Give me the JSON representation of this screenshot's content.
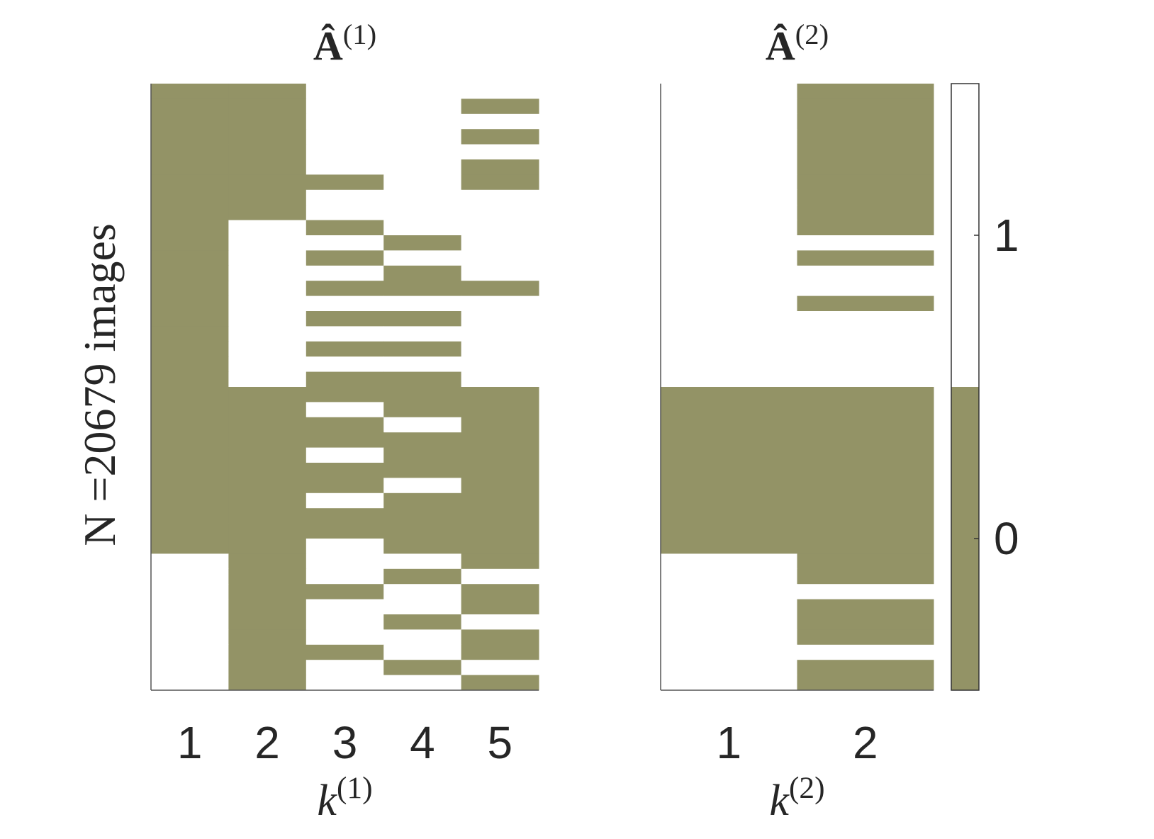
{
  "chart_data": [
    {
      "type": "heatmap",
      "title_base": "Â",
      "title_sup": "(1)",
      "xlabel_base": "k",
      "xlabel_sup": "(1)",
      "ylabel": "N =20679 images",
      "xticks": [
        1,
        2,
        3,
        4,
        5
      ],
      "colormap": [
        "#939366",
        "#ffffff"
      ],
      "z": [
        [
          0,
          0,
          1,
          1,
          1
        ],
        [
          0,
          0,
          1,
          1,
          0
        ],
        [
          0,
          0,
          1,
          1,
          1
        ],
        [
          0,
          0,
          1,
          1,
          0
        ],
        [
          0,
          0,
          1,
          1,
          1
        ],
        [
          0,
          0,
          1,
          1,
          0
        ],
        [
          0,
          0,
          0,
          1,
          0
        ],
        [
          0,
          0,
          1,
          1,
          1
        ],
        [
          0,
          0,
          1,
          1,
          1
        ],
        [
          0,
          1,
          0,
          1,
          1
        ],
        [
          0,
          1,
          1,
          0,
          1
        ],
        [
          0,
          1,
          0,
          1,
          1
        ],
        [
          0,
          1,
          1,
          0,
          1
        ],
        [
          0,
          1,
          0,
          0,
          0
        ],
        [
          0,
          1,
          1,
          1,
          1
        ],
        [
          0,
          1,
          0,
          0,
          1
        ],
        [
          0,
          1,
          1,
          1,
          1
        ],
        [
          0,
          1,
          0,
          0,
          1
        ],
        [
          0,
          1,
          1,
          1,
          1
        ],
        [
          0,
          1,
          0,
          0,
          1
        ],
        [
          0,
          0,
          0,
          0,
          0
        ],
        [
          0,
          0,
          1,
          0,
          0
        ],
        [
          0,
          0,
          0,
          1,
          0
        ],
        [
          0,
          0,
          0,
          0,
          0
        ],
        [
          0,
          0,
          1,
          0,
          0
        ],
        [
          0,
          0,
          0,
          0,
          0
        ],
        [
          0,
          0,
          0,
          1,
          0
        ],
        [
          0,
          0,
          1,
          0,
          0
        ],
        [
          0,
          0,
          0,
          0,
          0
        ],
        [
          0,
          0,
          0,
          0,
          0
        ],
        [
          0,
          0,
          1,
          0,
          0
        ],
        [
          1,
          0,
          1,
          1,
          0
        ],
        [
          1,
          0,
          1,
          0,
          1
        ],
        [
          1,
          0,
          0,
          1,
          0
        ],
        [
          1,
          0,
          1,
          1,
          0
        ],
        [
          1,
          0,
          1,
          0,
          1
        ],
        [
          1,
          0,
          1,
          1,
          0
        ],
        [
          1,
          0,
          0,
          1,
          0
        ],
        [
          1,
          0,
          1,
          0,
          1
        ],
        [
          1,
          0,
          1,
          1,
          0
        ]
      ]
    },
    {
      "type": "heatmap",
      "title_base": "Â",
      "title_sup": "(2)",
      "xlabel_base": "k",
      "xlabel_sup": "(2)",
      "xticks": [
        1,
        2
      ],
      "colormap": [
        "#939366",
        "#ffffff"
      ],
      "z": [
        [
          1,
          0
        ],
        [
          1,
          0
        ],
        [
          1,
          0
        ],
        [
          1,
          0
        ],
        [
          1,
          0
        ],
        [
          1,
          0
        ],
        [
          1,
          0
        ],
        [
          1,
          0
        ],
        [
          1,
          0
        ],
        [
          1,
          0
        ],
        [
          1,
          1
        ],
        [
          1,
          0
        ],
        [
          1,
          1
        ],
        [
          1,
          1
        ],
        [
          1,
          0
        ],
        [
          1,
          1
        ],
        [
          1,
          1
        ],
        [
          1,
          1
        ],
        [
          1,
          1
        ],
        [
          1,
          1
        ],
        [
          0,
          0
        ],
        [
          0,
          0
        ],
        [
          0,
          0
        ],
        [
          0,
          0
        ],
        [
          0,
          0
        ],
        [
          0,
          0
        ],
        [
          0,
          0
        ],
        [
          0,
          0
        ],
        [
          0,
          0
        ],
        [
          0,
          0
        ],
        [
          0,
          0
        ],
        [
          1,
          0
        ],
        [
          1,
          0
        ],
        [
          1,
          1
        ],
        [
          1,
          0
        ],
        [
          1,
          0
        ],
        [
          1,
          0
        ],
        [
          1,
          1
        ],
        [
          1,
          0
        ],
        [
          1,
          0
        ]
      ],
      "colorbar": {
        "clim": [
          -0.5,
          1.5
        ],
        "ticks": [
          0,
          1
        ]
      }
    }
  ]
}
